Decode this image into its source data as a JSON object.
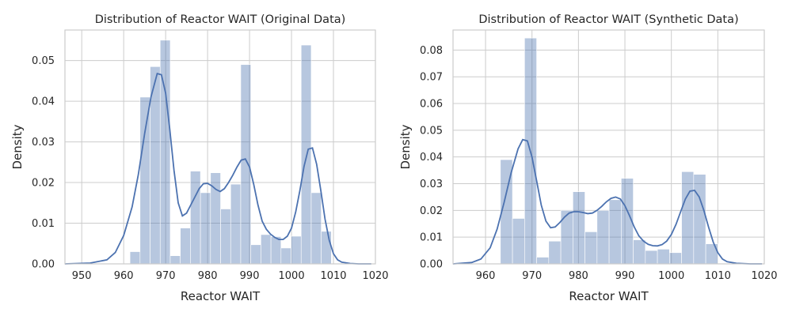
{
  "chart_data": [
    {
      "type": "histogram",
      "title": "Distribution of Reactor WAIT (Original Data)",
      "xlabel": "Reactor WAIT",
      "ylabel": "Density",
      "xlim": [
        946,
        1020
      ],
      "ylim": [
        0,
        0.0575
      ],
      "xticks": [
        950,
        960,
        970,
        980,
        990,
        1000,
        1010,
        1020
      ],
      "yticks": [
        0.0,
        0.01,
        0.02,
        0.03,
        0.04,
        0.05
      ],
      "ytick_labels": [
        "0.00",
        "0.01",
        "0.02",
        "0.03",
        "0.04",
        "0.05"
      ],
      "grid": true,
      "bin_edges": [
        961.5,
        963.9,
        966.3,
        968.7,
        971.1,
        973.5,
        975.9,
        978.3,
        980.7,
        983.1,
        985.5,
        987.9,
        990.3,
        992.7,
        995.1,
        997.5,
        999.9,
        1002.3,
        1004.7,
        1007.1,
        1009.5
      ],
      "densities": [
        0.003,
        0.041,
        0.0485,
        0.055,
        0.002,
        0.0088,
        0.0228,
        0.0175,
        0.0224,
        0.0135,
        0.0196,
        0.049,
        0.0047,
        0.0072,
        0.0067,
        0.0039,
        0.0068,
        0.0538,
        0.0175,
        0.008
      ],
      "kde": {
        "x": [
          946,
          952,
          956,
          958,
          960,
          962,
          963.5,
          965,
          966.5,
          968,
          969,
          970,
          971,
          972,
          973,
          974,
          975,
          976,
          977,
          978,
          979,
          980,
          981,
          982,
          983,
          984,
          985,
          986,
          987,
          988,
          989,
          990,
          991,
          992,
          993,
          994,
          995,
          996,
          997,
          998,
          999,
          1000,
          1001,
          1002,
          1003,
          1004,
          1005,
          1006,
          1007,
          1008,
          1009,
          1010,
          1011,
          1012,
          1014,
          1016,
          1019
        ],
        "y": [
          0.0,
          0.0002,
          0.001,
          0.0028,
          0.007,
          0.014,
          0.022,
          0.032,
          0.041,
          0.0468,
          0.0465,
          0.042,
          0.033,
          0.023,
          0.015,
          0.0118,
          0.0125,
          0.0145,
          0.0165,
          0.0185,
          0.0197,
          0.0198,
          0.0192,
          0.0183,
          0.0178,
          0.0185,
          0.02,
          0.0218,
          0.0238,
          0.0255,
          0.0258,
          0.0238,
          0.0195,
          0.0145,
          0.0105,
          0.0085,
          0.0073,
          0.0065,
          0.006,
          0.006,
          0.0068,
          0.0088,
          0.0128,
          0.018,
          0.024,
          0.0282,
          0.0285,
          0.0245,
          0.018,
          0.011,
          0.0058,
          0.0025,
          0.001,
          0.0004,
          0.0001,
          0.0,
          0.0
        ]
      }
    },
    {
      "type": "histogram",
      "title": "Distribution of Reactor WAIT (Synthetic Data)",
      "xlabel": "Reactor WAIT",
      "ylabel": "Density",
      "xlim": [
        953,
        1020
      ],
      "ylim": [
        0,
        0.0875
      ],
      "xticks": [
        960,
        970,
        980,
        990,
        1000,
        1010,
        1020
      ],
      "yticks": [
        0.0,
        0.01,
        0.02,
        0.03,
        0.04,
        0.05,
        0.06,
        0.07,
        0.08
      ],
      "ytick_labels": [
        "0.00",
        "0.01",
        "0.02",
        "0.03",
        "0.04",
        "0.05",
        "0.06",
        "0.07",
        "0.08"
      ],
      "grid": true,
      "bin_edges": [
        963.2,
        965.8,
        968.4,
        971.0,
        973.6,
        976.2,
        978.8,
        981.4,
        984.0,
        986.6,
        989.2,
        991.8,
        994.4,
        997.0,
        999.6,
        1002.2,
        1004.8,
        1007.4,
        1010.0
      ],
      "densities": [
        0.039,
        0.017,
        0.0845,
        0.0025,
        0.0085,
        0.02,
        0.027,
        0.012,
        0.02,
        0.024,
        0.032,
        0.009,
        0.005,
        0.0055,
        0.0042,
        0.0345,
        0.0335,
        0.0075
      ],
      "kde": {
        "x": [
          953,
          957,
          959,
          961,
          962.5,
          964,
          965.5,
          967,
          968,
          969,
          970,
          971,
          972,
          973,
          974,
          975,
          976,
          977,
          978,
          979,
          980,
          981,
          982,
          983,
          984,
          985,
          986,
          987,
          988,
          989,
          990,
          991,
          992,
          993,
          994,
          995,
          996,
          997,
          998,
          999,
          1000,
          1001,
          1002,
          1003,
          1004,
          1005,
          1006,
          1007,
          1008,
          1009,
          1010,
          1011,
          1012,
          1014,
          1017,
          1019.5
        ],
        "y": [
          0.0,
          0.0005,
          0.0018,
          0.006,
          0.013,
          0.023,
          0.034,
          0.043,
          0.0465,
          0.046,
          0.04,
          0.031,
          0.022,
          0.016,
          0.0135,
          0.0138,
          0.0155,
          0.0175,
          0.019,
          0.0195,
          0.0195,
          0.0192,
          0.0188,
          0.019,
          0.02,
          0.0215,
          0.0232,
          0.0245,
          0.025,
          0.0243,
          0.0218,
          0.018,
          0.0138,
          0.0105,
          0.0085,
          0.0073,
          0.0068,
          0.0067,
          0.0072,
          0.0085,
          0.011,
          0.0148,
          0.0195,
          0.0242,
          0.0272,
          0.0275,
          0.025,
          0.02,
          0.0138,
          0.0082,
          0.0042,
          0.0018,
          0.0008,
          0.0002,
          0.0,
          0.0
        ]
      }
    }
  ]
}
